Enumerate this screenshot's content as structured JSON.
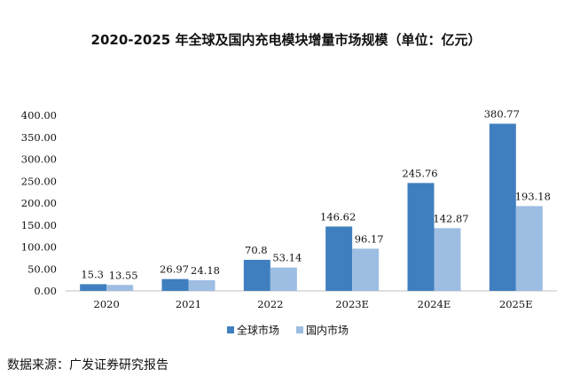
{
  "chart_data": {
    "type": "bar",
    "title": "2020-2025 年全球及国内充电模块增量市场规模（单位：亿元）",
    "categories": [
      "2020",
      "2021",
      "2022",
      "2023E",
      "2024E",
      "2025E"
    ],
    "series": [
      {
        "name": "全球市场",
        "values": [
          15.3,
          26.97,
          70.8,
          146.62,
          245.76,
          380.77
        ],
        "value_labels": [
          "15.3",
          "26.97",
          "70.8",
          "146.62",
          "245.76",
          "380.77"
        ],
        "color": "#3f7fbf"
      },
      {
        "name": "国内市场",
        "values": [
          13.55,
          24.18,
          53.14,
          96.17,
          142.87,
          193.18
        ],
        "value_labels": [
          "13.55",
          "24.18",
          "53.14",
          "96.17",
          "142.87",
          "193.18"
        ],
        "color": "#9dbde3"
      }
    ],
    "y_ticks": [
      "0.00",
      "50.00",
      "100.00",
      "150.00",
      "200.00",
      "250.00",
      "300.00",
      "350.00",
      "400.00"
    ],
    "ylim": [
      0,
      400
    ],
    "grid": false,
    "legend_position": "bottom-center"
  },
  "source": "数据来源：广发证券研究报告"
}
